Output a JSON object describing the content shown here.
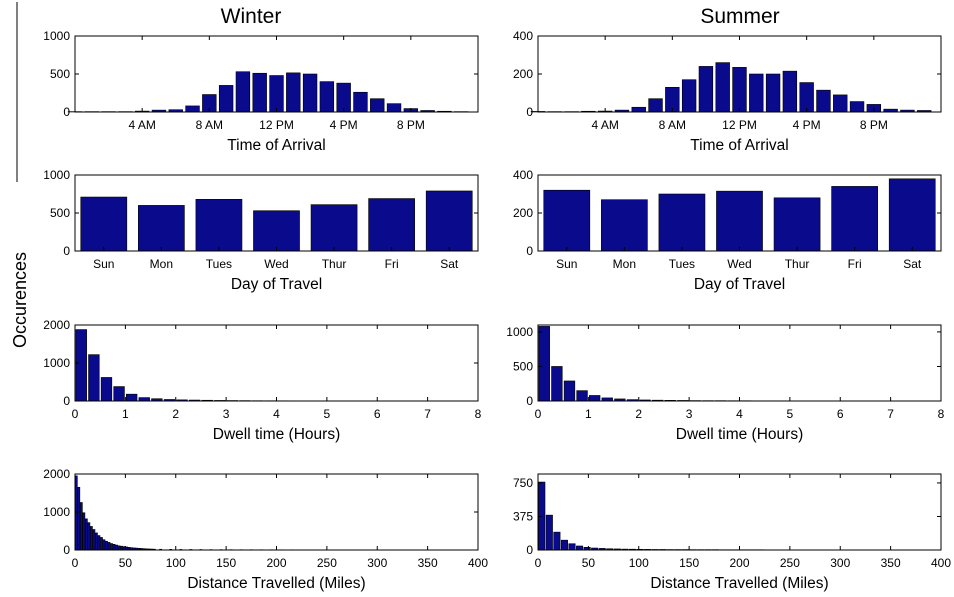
{
  "figure": {
    "ylabel": "Occurences",
    "column_titles": [
      "Winter",
      "Summer"
    ],
    "bar_color": "#0a0a8c"
  },
  "chart_data": [
    {
      "id": "winter-arrival",
      "type": "bar",
      "season": "Winter",
      "xlabel": "Time of Arrival",
      "ylabel": "",
      "xlim": [
        0,
        24
      ],
      "ylim": [
        0,
        1000
      ],
      "yticks": [
        0,
        500,
        1000
      ],
      "xticks": [
        {
          "v": 4,
          "label": "4 AM"
        },
        {
          "v": 8,
          "label": "8 AM"
        },
        {
          "v": 12,
          "label": "12 PM"
        },
        {
          "v": 16,
          "label": "4 PM"
        },
        {
          "v": 20,
          "label": "8 PM"
        }
      ],
      "x": [
        0,
        1,
        2,
        3,
        4,
        5,
        6,
        7,
        8,
        9,
        10,
        11,
        12,
        13,
        14,
        15,
        16,
        17,
        18,
        19,
        20,
        21,
        22,
        23
      ],
      "values": [
        5,
        5,
        5,
        5,
        12,
        25,
        30,
        80,
        230,
        350,
        530,
        510,
        480,
        515,
        500,
        400,
        380,
        260,
        175,
        110,
        45,
        20,
        10,
        5
      ]
    },
    {
      "id": "summer-arrival",
      "type": "bar",
      "season": "Summer",
      "xlabel": "Time of Arrival",
      "ylabel": "",
      "xlim": [
        0,
        24
      ],
      "ylim": [
        0,
        400
      ],
      "yticks": [
        0,
        200,
        400
      ],
      "xticks": [
        {
          "v": 4,
          "label": "4 AM"
        },
        {
          "v": 8,
          "label": "8 AM"
        },
        {
          "v": 12,
          "label": "12 PM"
        },
        {
          "v": 16,
          "label": "4 PM"
        },
        {
          "v": 20,
          "label": "8 PM"
        }
      ],
      "x": [
        0,
        1,
        2,
        3,
        4,
        5,
        6,
        7,
        8,
        9,
        10,
        11,
        12,
        13,
        14,
        15,
        16,
        17,
        18,
        19,
        20,
        21,
        22,
        23
      ],
      "values": [
        3,
        2,
        2,
        4,
        5,
        10,
        25,
        70,
        130,
        170,
        240,
        260,
        235,
        200,
        200,
        215,
        155,
        115,
        90,
        55,
        40,
        15,
        10,
        8
      ]
    },
    {
      "id": "winter-day",
      "type": "bar",
      "season": "Winter",
      "xlabel": "Day of Travel",
      "ylabel": "",
      "ylim": [
        0,
        1000
      ],
      "yticks": [
        0,
        500,
        1000
      ],
      "categories": [
        "Sun",
        "Mon",
        "Tues",
        "Wed",
        "Thur",
        "Fri",
        "Sat"
      ],
      "values": [
        710,
        600,
        680,
        530,
        610,
        690,
        790
      ]
    },
    {
      "id": "summer-day",
      "type": "bar",
      "season": "Summer",
      "xlabel": "Day of Travel",
      "ylabel": "",
      "ylim": [
        0,
        400
      ],
      "yticks": [
        0,
        200,
        400
      ],
      "categories": [
        "Sun",
        "Mon",
        "Tues",
        "Wed",
        "Thur",
        "Fri",
        "Sat"
      ],
      "values": [
        320,
        270,
        300,
        315,
        280,
        340,
        380
      ]
    },
    {
      "id": "winter-dwell",
      "type": "bar",
      "season": "Winter",
      "xlabel": "Dwell time (Hours)",
      "ylabel": "",
      "xlim": [
        0,
        8
      ],
      "ylim": [
        0,
        2000
      ],
      "yticks": [
        0,
        1000,
        2000
      ],
      "xticks": [
        0,
        1,
        2,
        3,
        4,
        5,
        6,
        7,
        8
      ],
      "x": [
        0.125,
        0.375,
        0.625,
        0.875,
        1.125,
        1.375,
        1.625,
        1.875,
        2.125,
        2.375,
        2.625,
        2.875,
        3.125,
        3.375,
        3.625,
        3.875,
        4.125,
        4.375,
        4.625,
        4.875,
        5.125,
        5.375,
        5.625,
        5.875,
        6.125,
        6.375,
        6.625,
        6.875,
        7.125,
        7.375
      ],
      "bin_width": 0.25,
      "values": [
        1880,
        1220,
        620,
        380,
        180,
        90,
        60,
        40,
        30,
        25,
        20,
        15,
        12,
        10,
        8,
        7,
        6,
        5,
        5,
        5,
        4,
        4,
        3,
        3,
        3,
        3,
        3,
        2,
        2,
        2
      ]
    },
    {
      "id": "summer-dwell",
      "type": "bar",
      "season": "Summer",
      "xlabel": "Dwell time (Hours)",
      "ylabel": "",
      "xlim": [
        0,
        8
      ],
      "ylim": [
        0,
        1100
      ],
      "yticks": [
        0,
        500,
        1000
      ],
      "xticks": [
        0,
        1,
        2,
        3,
        4,
        5,
        6,
        7,
        8
      ],
      "x": [
        0.125,
        0.375,
        0.625,
        0.875,
        1.125,
        1.375,
        1.625,
        1.875,
        2.125,
        2.375,
        2.625,
        2.875,
        3.125,
        3.375,
        3.625,
        3.875,
        4.125,
        4.375,
        4.625,
        4.875,
        5.125,
        5.375,
        5.625,
        5.875,
        6.125,
        6.375,
        6.625,
        6.875,
        7.125
      ],
      "bin_width": 0.25,
      "values": [
        1080,
        500,
        290,
        150,
        80,
        45,
        30,
        20,
        15,
        12,
        10,
        8,
        6,
        5,
        5,
        4,
        4,
        3,
        3,
        3,
        2,
        2,
        2,
        2,
        2,
        2,
        2,
        2,
        2
      ]
    },
    {
      "id": "winter-distance",
      "type": "bar",
      "season": "Winter",
      "xlabel": "Distance Travelled (Miles)",
      "ylabel": "",
      "xlim": [
        0,
        400
      ],
      "ylim": [
        0,
        2000
      ],
      "yticks": [
        0,
        1000,
        2000
      ],
      "xticks": [
        0,
        50,
        100,
        150,
        200,
        250,
        300,
        350,
        400
      ],
      "bin_width": 2.5,
      "x": [
        1.25,
        3.75,
        6.25,
        8.75,
        11.25,
        13.75,
        16.25,
        18.75,
        21.25,
        23.75,
        26.25,
        28.75,
        31.25,
        33.75,
        36.25,
        38.75,
        41.25,
        43.75,
        46.25,
        48.75,
        51.25,
        53.75,
        56.25,
        58.75,
        61.25,
        63.75,
        66.25,
        68.75,
        71.25,
        73.75,
        76.25,
        78.75,
        85,
        95,
        105,
        115,
        125,
        135,
        145,
        155,
        165,
        175,
        185,
        195,
        205,
        215,
        225,
        235,
        245,
        255,
        265,
        275,
        285,
        295,
        305,
        315,
        325,
        335,
        345,
        355,
        365,
        375
      ],
      "values": [
        1950,
        1650,
        1250,
        980,
        820,
        720,
        620,
        540,
        450,
        380,
        330,
        270,
        230,
        200,
        170,
        150,
        130,
        110,
        100,
        90,
        80,
        70,
        60,
        55,
        50,
        45,
        40,
        35,
        30,
        28,
        25,
        22,
        20,
        18,
        15,
        14,
        12,
        10,
        10,
        9,
        8,
        8,
        7,
        7,
        6,
        6,
        5,
        5,
        5,
        4,
        4,
        4,
        4,
        3,
        3,
        3,
        3,
        3,
        2,
        2,
        2,
        2
      ]
    },
    {
      "id": "summer-distance",
      "type": "bar",
      "season": "Summer",
      "xlabel": "Distance Travelled (Miles)",
      "ylabel": "",
      "xlim": [
        0,
        400
      ],
      "ylim": [
        0,
        850
      ],
      "yticks": [
        0,
        375,
        750
      ],
      "xticks": [
        0,
        50,
        100,
        150,
        200,
        250,
        300,
        350,
        400
      ],
      "bin_width": 7.5,
      "x": [
        3.75,
        11.25,
        18.75,
        26.25,
        33.75,
        41.25,
        48.75,
        56.25,
        63.75,
        71.25,
        78.75,
        86.25,
        93.75,
        101.25,
        108.75,
        116.25,
        123.75,
        131.25,
        138.75,
        146.25,
        153.75,
        161.25,
        168.75,
        176.25,
        183.75,
        191.25,
        198.75,
        206.25,
        213.75,
        221.25,
        228.75,
        236.25,
        243.75,
        251.25,
        258.75,
        266.25,
        273.75,
        281.25,
        288.75,
        296.25,
        303.75,
        311.25,
        318.75,
        326.25,
        333.75,
        341.25,
        348.75,
        356.25,
        363.75
      ],
      "values": [
        760,
        390,
        200,
        110,
        70,
        45,
        30,
        22,
        18,
        14,
        12,
        10,
        9,
        8,
        7,
        6,
        6,
        5,
        5,
        5,
        4,
        4,
        4,
        4,
        3,
        3,
        3,
        3,
        3,
        3,
        2,
        2,
        2,
        2,
        2,
        2,
        2,
        2,
        2,
        2,
        2,
        2,
        2,
        2,
        2,
        2,
        2,
        2,
        2
      ]
    }
  ]
}
